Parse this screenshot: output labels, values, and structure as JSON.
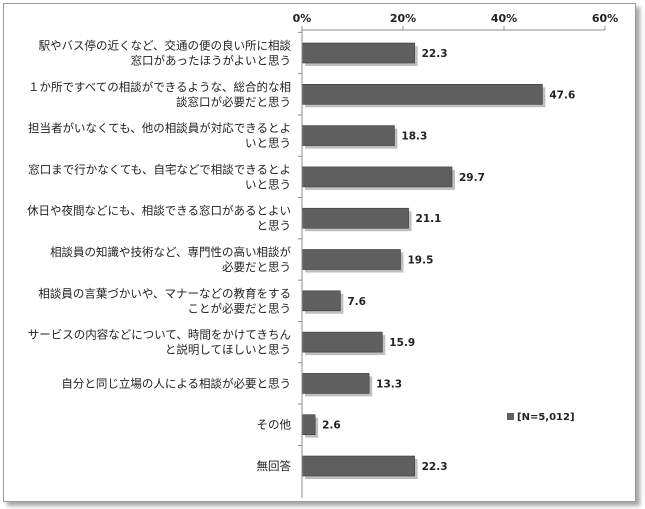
{
  "chart_data": {
    "type": "bar",
    "orientation": "horizontal",
    "categories": [
      [
        "駅やバス停の近くなど、交通の便の良い所に相談",
        "窓口があったほうがよいと思う"
      ],
      [
        "１か所ですべての相談ができるような、総合的な相",
        "談窓口が必要だと思う"
      ],
      [
        "担当者がいなくても、他の相談員が対応できるとよ",
        "いと思う"
      ],
      [
        "窓口まで行かなくても、自宅などで相談できるとよ",
        "いと思う"
      ],
      [
        "休日や夜間などにも、相談できる窓口があるとよい",
        "と思う"
      ],
      [
        "相談員の知識や技術など、専門性の高い相談が",
        "必要だと思う"
      ],
      [
        "相談員の言葉づかいや、マナーなどの教育をする",
        "ことが必要だと思う"
      ],
      [
        "サービスの内容などについて、時間をかけてきちん",
        "と説明してほしいと思う"
      ],
      [
        "自分と同じ立場の人による相談が必要と思う"
      ],
      [
        "その他"
      ],
      [
        "無回答"
      ]
    ],
    "values": [
      22.3,
      47.6,
      18.3,
      29.7,
      21.1,
      19.5,
      7.6,
      15.9,
      13.3,
      2.6,
      22.3
    ],
    "value_labels": [
      "22.3",
      "47.6",
      "18.3",
      "29.7",
      "21.1",
      "19.5",
      "7.6",
      "15.9",
      "13.3",
      "2.6",
      "22.3"
    ],
    "xlim": [
      0,
      60
    ],
    "ticks": [
      0,
      20,
      40,
      60
    ],
    "tick_labels": [
      "0%",
      "20%",
      "40%",
      "60%"
    ],
    "legend": {
      "label": "[N=5,012]",
      "placement": "right"
    },
    "grid": false,
    "colors": {
      "bar": "#5f5f5f",
      "bar_edge": "#3a3a3a",
      "axis": "#8c8c8c"
    }
  }
}
